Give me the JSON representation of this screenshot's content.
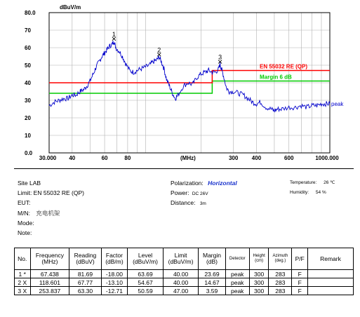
{
  "chart_data": {
    "type": "line",
    "y_unit_label": "dBuV/m",
    "x_unit_label": "(MHz)",
    "ylim": [
      0,
      80
    ],
    "y_ticks": [
      "0.0",
      "10",
      "20",
      "30",
      "40",
      "50",
      "60",
      "70",
      "80.0"
    ],
    "xlim": [
      30,
      1000
    ],
    "x_scale": "log",
    "x_ticks": [
      {
        "value": 30,
        "label": "30.000"
      },
      {
        "value": 40,
        "label": "40"
      },
      {
        "value": 60,
        "label": "60"
      },
      {
        "value": 80,
        "label": "80"
      },
      {
        "value": 200,
        "label": ""
      },
      {
        "value": 300,
        "label": "300"
      },
      {
        "value": 400,
        "label": "400"
      },
      {
        "value": 600,
        "label": "600"
      },
      {
        "value": 1000,
        "label": "1000.000"
      }
    ],
    "grid": true,
    "limit_line": {
      "label": "EN 55032 RE (QP)",
      "color": "#ff0000",
      "points": [
        [
          30,
          40
        ],
        [
          230,
          40
        ],
        [
          230,
          47
        ],
        [
          1000,
          47
        ]
      ]
    },
    "margin_line": {
      "label": "Margin  6 dB",
      "color": "#00cc00",
      "points": [
        [
          30,
          34
        ],
        [
          230,
          34
        ],
        [
          230,
          41
        ],
        [
          1000,
          41
        ]
      ]
    },
    "series": [
      {
        "color": "#0000cc",
        "end_label": "peak",
        "x": [
          30,
          32,
          34,
          36,
          38,
          40,
          42,
          44,
          46,
          48,
          50,
          52,
          54,
          56,
          58,
          60,
          62,
          64,
          66,
          67.4,
          69,
          72,
          75,
          78,
          82,
          86,
          90,
          95,
          100,
          105,
          110,
          115,
          118.6,
          122,
          126,
          130,
          135,
          140,
          145,
          150,
          160,
          170,
          180,
          190,
          200,
          210,
          220,
          230,
          240,
          250,
          253.8,
          258,
          265,
          275,
          285,
          300,
          320,
          340,
          360,
          380,
          400,
          420,
          450,
          480,
          500,
          520,
          550,
          600,
          650,
          700,
          750,
          800,
          850,
          900,
          950,
          1000
        ],
        "y": [
          27,
          29,
          30,
          31,
          31,
          33,
          33,
          35,
          36,
          38,
          41,
          45,
          49,
          52,
          55,
          57,
          59,
          61,
          62,
          63.7,
          60,
          58,
          55,
          51,
          47,
          46,
          47,
          48,
          49,
          50,
          52,
          53,
          54.7,
          52,
          48,
          42,
          38,
          34,
          31,
          33,
          38,
          40,
          39,
          43,
          45,
          46,
          47,
          46,
          46,
          48,
          50.6,
          48,
          44,
          37,
          35,
          35,
          34,
          33,
          31,
          29,
          28,
          29,
          26,
          25,
          24,
          25,
          25,
          26,
          26,
          27,
          26,
          27,
          27,
          28,
          28,
          28
        ]
      }
    ],
    "markers": [
      {
        "label": "1",
        "x": 67.438,
        "y": 63.69
      },
      {
        "label": "2",
        "x": 118.601,
        "y": 54.67
      },
      {
        "label": "3",
        "x": 253.837,
        "y": 50.59
      }
    ]
  },
  "info": {
    "site": "Site LAB",
    "limit": "Limit: EN 55032 RE (QP)",
    "eut": "EUT:",
    "mn_label": "M/N:",
    "mn_value": "充电机架",
    "mode": "Mode:",
    "note": "Note:",
    "polarization_label": "Polarization:",
    "polarization_value": "Horizontal",
    "power_label": "Power:",
    "power_value": "DC 26V",
    "distance_label": "Distance:",
    "distance_value": "3m",
    "temperature_label": "Temperature:",
    "temperature_value": "26 ℃",
    "humidity_label": "Humidity:",
    "humidity_value": "54 %"
  },
  "table": {
    "headers": [
      {
        "l1": "No.",
        "l2": ""
      },
      {
        "l1": "Frequency",
        "l2": "(MHz)"
      },
      {
        "l1": "Reading",
        "l2": "(dBuV)"
      },
      {
        "l1": "Factor",
        "l2": "(dB/m)"
      },
      {
        "l1": "Level",
        "l2": "(dBuV/m)"
      },
      {
        "l1": "Limit",
        "l2": "(dBuV/m)"
      },
      {
        "l1": "Margin",
        "l2": "(dB)"
      },
      {
        "l1": "Detector",
        "l2": ""
      },
      {
        "l1": "Height",
        "l2": "(cm)"
      },
      {
        "l1": "Azimuth",
        "l2": "(deg.)"
      },
      {
        "l1": "P/F",
        "l2": ""
      },
      {
        "l1": "Remark",
        "l2": ""
      }
    ],
    "rows": [
      {
        "no": "1  *",
        "freq": "67.438",
        "reading": "81.69",
        "factor": "-18.00",
        "level": "63.69",
        "limit": "40.00",
        "margin": "23.69",
        "detector": "peak",
        "height": "300",
        "azimuth": "283",
        "pf": "F",
        "remark": ""
      },
      {
        "no": "2  X",
        "freq": "118.601",
        "reading": "67.77",
        "factor": "-13.10",
        "level": "54.67",
        "limit": "40.00",
        "margin": "14.67",
        "detector": "peak",
        "height": "300",
        "azimuth": "283",
        "pf": "F",
        "remark": ""
      },
      {
        "no": "3  X",
        "freq": "253.837",
        "reading": "63.30",
        "factor": "-12.71",
        "level": "50.59",
        "limit": "47.00",
        "margin": "3.59",
        "detector": "peak",
        "height": "300",
        "azimuth": "283",
        "pf": "F",
        "remark": ""
      }
    ]
  }
}
